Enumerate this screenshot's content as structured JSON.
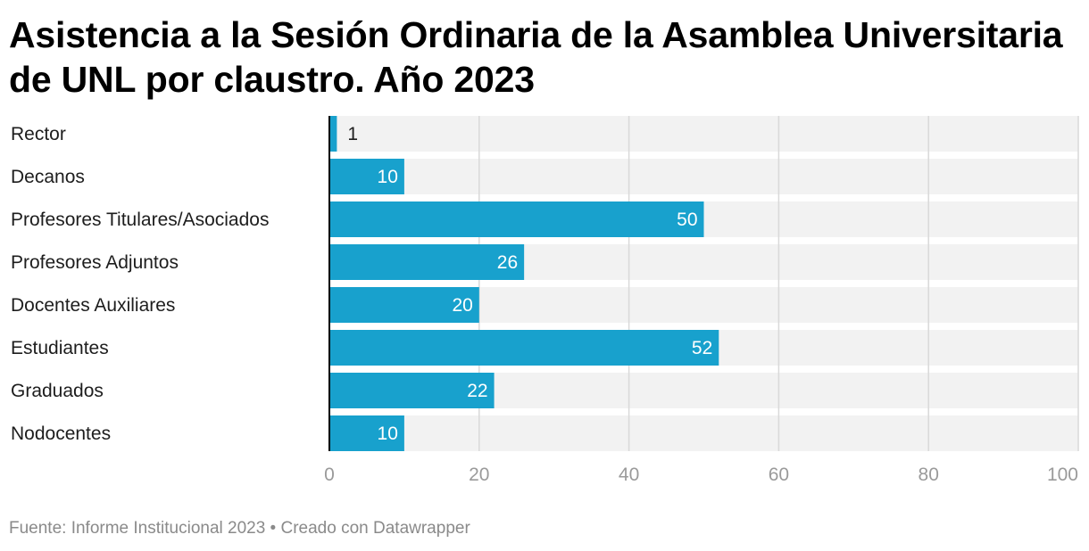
{
  "header": {
    "title": "Asistencia a la Sesión Ordinaria de la Asamblea Universitaria de UNL por claustro. Año 2023"
  },
  "chart_data": {
    "type": "bar",
    "orientation": "horizontal",
    "title": "Asistencia a la Sesión Ordinaria de la Asamblea Universitaria de UNL por claustro. Año 2023",
    "categories": [
      "Rector",
      "Decanos",
      "Profesores Titulares/Asociados",
      "Profesores Adjuntos",
      "Docentes Auxiliares",
      "Estudiantes",
      "Graduados",
      "Nodocentes"
    ],
    "values": [
      1,
      10,
      50,
      26,
      20,
      52,
      22,
      10
    ],
    "xlim": [
      0,
      100
    ],
    "ticks": [
      "0",
      "20",
      "40",
      "60",
      "80",
      "100"
    ],
    "tick_values": [
      0,
      20,
      40,
      60,
      80,
      100
    ],
    "grid": true,
    "bar_color": "#18a1cd",
    "background_color": "#f2f2f2",
    "axis_color": "#000000",
    "label_inside_color": "#ffffff",
    "label_outside_color": "#1d1d1d"
  },
  "footer": {
    "text": "Fuente: Informe Institucional 2023 • Creado con Datawrapper"
  }
}
